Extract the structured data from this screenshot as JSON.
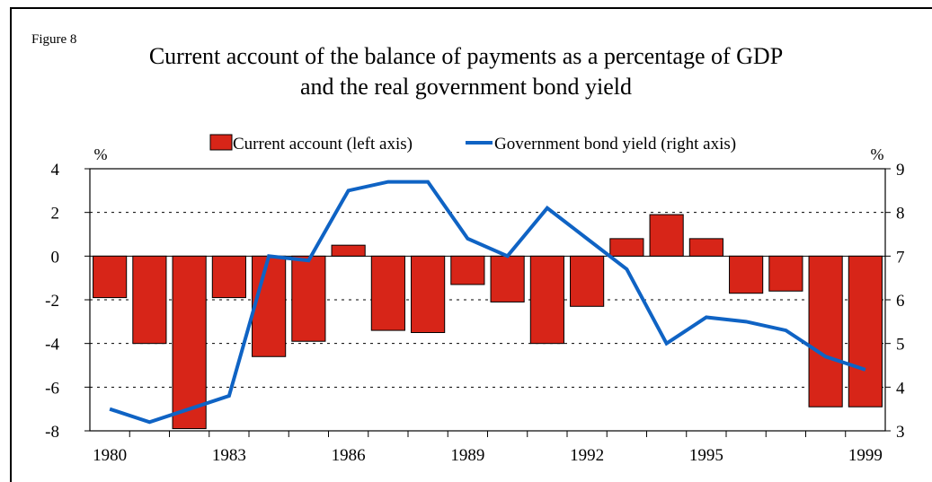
{
  "figure_label": "Figure 8",
  "title_line1": "Current account of the balance of payments as a percentage of GDP",
  "title_line2": "and the real government bond yield",
  "colors": {
    "bar": "#d72518",
    "line": "#0f63c4"
  },
  "chart_data": {
    "type": "bar",
    "title": "Current account of the balance of payments as a percentage of GDP and the real government bond yield",
    "x": [
      1980,
      1981,
      1982,
      1983,
      1984,
      1985,
      1986,
      1987,
      1988,
      1989,
      1990,
      1991,
      1992,
      1993,
      1994,
      1995,
      1996,
      1997,
      1998,
      1999
    ],
    "xticks": [
      "1980",
      "1983",
      "1986",
      "1989",
      "1992",
      "1995",
      "1999"
    ],
    "left_axis": {
      "unit": "%",
      "ylim": [
        -8,
        4
      ],
      "ticks": [
        "4",
        "2",
        "0",
        "-2",
        "-4",
        "-6",
        "-8"
      ]
    },
    "right_axis": {
      "unit": "%",
      "ylim": [
        3,
        9
      ],
      "ticks": [
        "9",
        "8",
        "7",
        "6",
        "5",
        "4",
        "3"
      ]
    },
    "grid": "horizontal dashed",
    "legend_position": "top",
    "series": [
      {
        "name": "Current account (left axis)",
        "type": "bar",
        "axis": "left",
        "values": [
          -1.9,
          -4.0,
          -7.9,
          -1.9,
          -4.6,
          -3.9,
          0.5,
          -3.4,
          -3.5,
          -1.3,
          -2.1,
          -4.0,
          -2.3,
          0.8,
          1.9,
          0.8,
          -1.7,
          -1.6,
          -6.9,
          -6.9
        ]
      },
      {
        "name": "Government bond yield (right axis)",
        "type": "line",
        "axis": "right",
        "values": [
          3.5,
          3.2,
          3.5,
          3.8,
          7.0,
          6.9,
          8.5,
          8.7,
          8.7,
          7.4,
          7.0,
          8.1,
          7.4,
          6.7,
          5.0,
          5.6,
          5.5,
          5.3,
          4.7,
          4.4
        ]
      }
    ]
  }
}
